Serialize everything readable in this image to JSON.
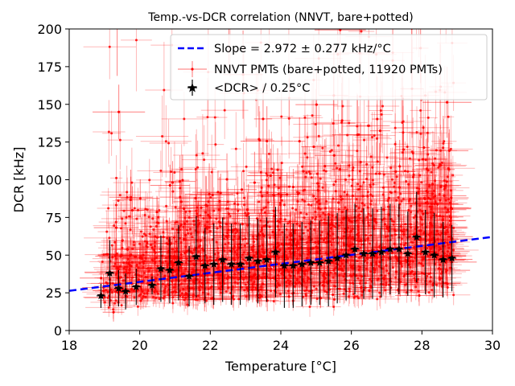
{
  "chart_data": {
    "type": "scatter",
    "title": "Temp.-vs-DCR correlation (NNVT, bare+potted)",
    "xlabel": "Temperature [°C]",
    "ylabel": "DCR [kHz]",
    "xlim": [
      18,
      30
    ],
    "ylim": [
      0,
      200
    ],
    "xticks": [
      "18",
      "20",
      "22",
      "24",
      "26",
      "28",
      "30"
    ],
    "yticks": [
      "0",
      "25",
      "50",
      "75",
      "100",
      "125",
      "150",
      "175",
      "200"
    ],
    "grid": false,
    "legend_position": "top-right",
    "colors": {
      "fit": "#0000ff",
      "pmts": "#ff0000",
      "mean": "#000000"
    },
    "series": [
      {
        "name": "Slope = 2.972 ± 0.277 kHz/°C",
        "kind": "dashed-line",
        "line": [
          [
            18,
            26.3
          ],
          [
            30,
            62.1
          ]
        ]
      },
      {
        "name": "NNVT PMTs (bare+potted, 11920 PMTs)",
        "kind": "scatter-errorbars",
        "x_range": [
          18.9,
          28.9
        ],
        "note": "dense cloud, approx. 11920 PMTs, centered ~40-50 kHz"
      },
      {
        "name": "<DCR> / 0.25°C",
        "kind": "mean-errorbars",
        "x": [
          18.9,
          19.15,
          19.4,
          19.6,
          19.9,
          20.35,
          20.6,
          20.85,
          21.1,
          21.4,
          21.6,
          21.85,
          22.1,
          22.35,
          22.6,
          22.85,
          23.1,
          23.35,
          23.6,
          23.85,
          24.1,
          24.35,
          24.6,
          24.85,
          25.1,
          25.35,
          25.6,
          25.85,
          26.1,
          26.35,
          26.6,
          26.85,
          27.1,
          27.35,
          27.6,
          27.85,
          28.1,
          28.35,
          28.6,
          28.85
        ],
        "y": [
          23,
          38,
          28,
          26,
          29,
          30,
          41,
          40,
          45,
          36,
          49,
          43,
          44,
          47,
          44,
          44,
          48,
          46,
          47,
          52,
          43,
          43,
          44,
          45,
          45,
          46,
          48,
          50,
          54,
          51,
          51,
          52,
          54,
          54,
          51,
          62,
          52,
          50,
          47,
          48
        ],
        "yerr": [
          8,
          22,
          12,
          12,
          12,
          6,
          22,
          22,
          25,
          20,
          27,
          25,
          27,
          28,
          27,
          27,
          28,
          28,
          28,
          30,
          28,
          28,
          28,
          28,
          28,
          30,
          30,
          30,
          30,
          30,
          30,
          30,
          30,
          30,
          28,
          30,
          28,
          28,
          25,
          22
        ]
      }
    ]
  }
}
